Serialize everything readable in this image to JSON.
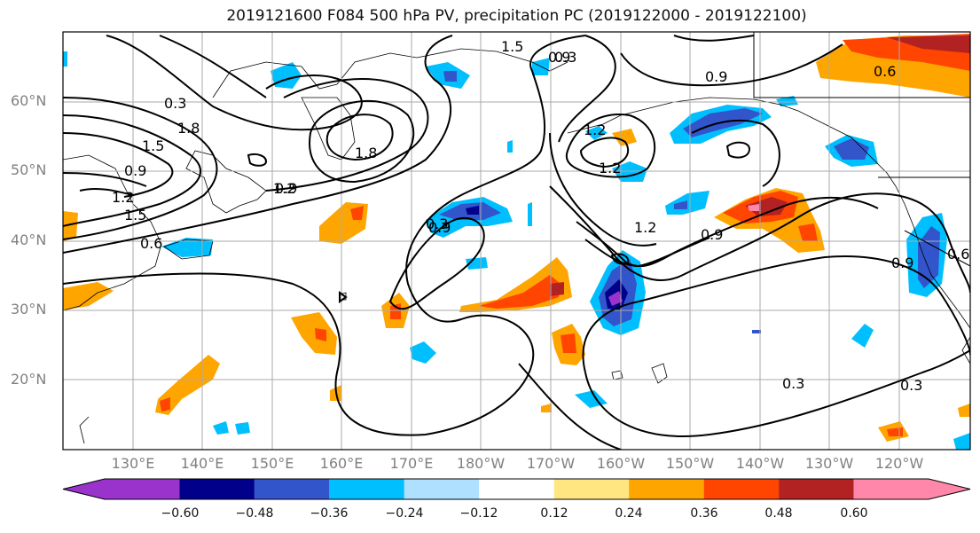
{
  "title": "2019121600 F084 500 hPa PV, precipitation PC (2019122000 - 2019122100)",
  "lat_labels": [
    "60°N",
    "50°N",
    "40°N",
    "30°N",
    "20°N"
  ],
  "lon_labels": [
    "130°E",
    "140°E",
    "150°E",
    "160°E",
    "170°E",
    "180°W",
    "170°W",
    "160°W",
    "150°W",
    "140°W",
    "130°W",
    "120°W"
  ],
  "contour_labels": [
    "1.2",
    "1.5",
    "1.8",
    "0.3",
    "0.9",
    "0.6",
    "1.5",
    "1.8",
    "0.9",
    "1.2",
    "0.9",
    "1.5",
    "0.9",
    "1.2",
    "0.9",
    "1.2",
    "0.9",
    "0.6",
    "0.3",
    "1.2",
    "0.9",
    "0.3",
    "0.6",
    "0.3",
    "0.3"
  ],
  "colorbar": {
    "colors": [
      "#9933cc",
      "#00008b",
      "#3355cc",
      "#00bfff",
      "#b0e0ff",
      "#ffffff",
      "#ffe680",
      "#ffa500",
      "#ff4500",
      "#b22222",
      "#ff88aa"
    ],
    "ticks": [
      "−0.60",
      "−0.48",
      "−0.36",
      "−0.24",
      "−0.12",
      "0.12",
      "0.24",
      "0.36",
      "0.48",
      "0.60"
    ]
  }
}
